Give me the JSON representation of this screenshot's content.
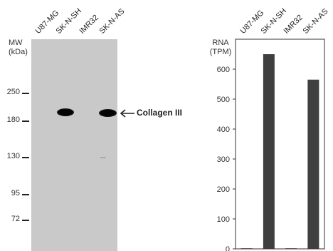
{
  "blot": {
    "mw_title_line1": "MW",
    "mw_title_line2": "(kDa)",
    "lanes": [
      "U87-MG",
      "SK-N-SH",
      "IMR32",
      "SK-N-AS"
    ],
    "markers": [
      "250",
      "180",
      "130",
      "95",
      "72"
    ],
    "band_label": "Collagen III",
    "band_lanes": [
      false,
      true,
      false,
      true
    ]
  },
  "chart_data": {
    "type": "bar",
    "categories": [
      "U87-MG",
      "SK-N-SH",
      "IMR32",
      "SK-N-AS"
    ],
    "values": [
      2,
      650,
      2,
      565
    ],
    "ylabel_line1": "RNA",
    "ylabel_line2": "(TPM)",
    "ylim": [
      0,
      700
    ],
    "yticks": [
      0,
      100,
      200,
      300,
      400,
      500,
      600
    ],
    "bar_color": "#3f3f3f",
    "grid": false
  }
}
